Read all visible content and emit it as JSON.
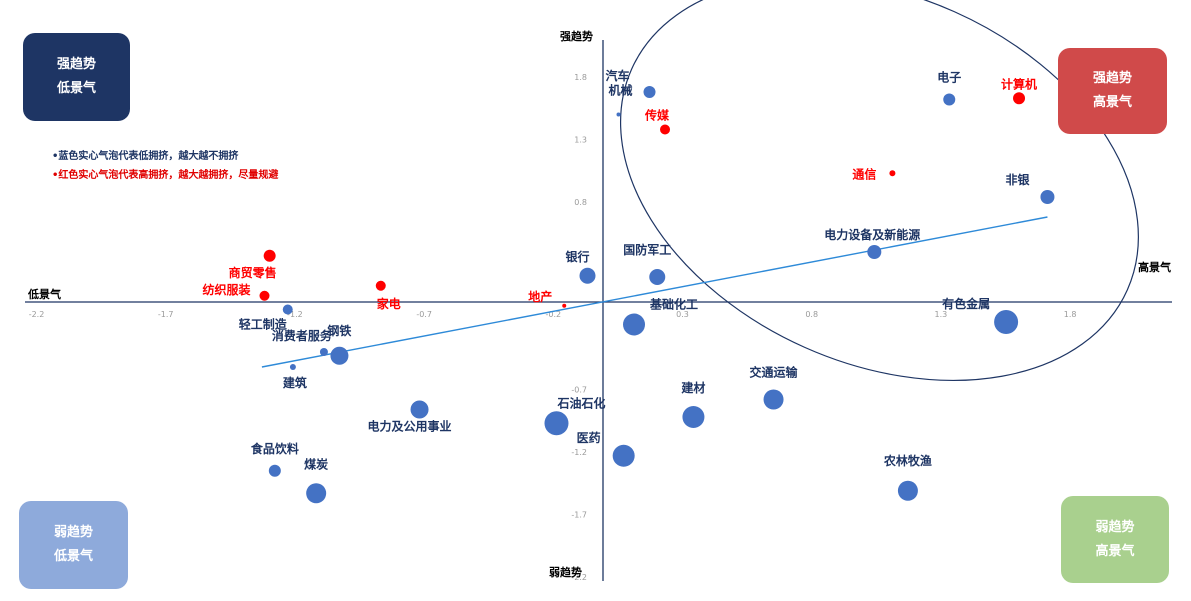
{
  "quadrants": {
    "top_left": {
      "line1": "强趋势",
      "line2": "低景气",
      "color": "#1e3564"
    },
    "top_right": {
      "line1": "强趋势",
      "line2": "高景气",
      "color": "#d04a4a"
    },
    "bottom_left": {
      "line1": "弱趋势",
      "line2": "低景气",
      "color": "#8eaadb"
    },
    "bottom_right": {
      "line1": "弱趋势",
      "line2": "高景气",
      "color": "#a9d08e"
    }
  },
  "notes": {
    "blue": "•蓝色实心气泡代表低拥挤，越大越不拥挤",
    "red": "•红色实心气泡代表高拥挤，越大越拥挤，尽量规避"
  },
  "chart_data": {
    "type": "scatter",
    "xlabel_left": "低景气",
    "xlabel_right": "高景气",
    "ylabel_top": "强趋势",
    "ylabel_bottom": "弱趋势",
    "xlim": [
      -2.2,
      2.2
    ],
    "ylim": [
      -2.2,
      2.2
    ],
    "x_ticks": [
      "-2.2",
      "-1.7",
      "-1.2",
      "-0.7",
      "-0.2",
      "0.3",
      "0.8",
      "1.3",
      "1.8"
    ],
    "x_tick_values": [
      -2.2,
      -1.7,
      -1.2,
      -0.7,
      -0.2,
      0.3,
      0.8,
      1.3,
      1.8
    ],
    "y_ticks": [
      "1.8",
      "1.3",
      "0.8",
      "-0.7",
      "-1.2",
      "-1.7",
      "-2.2"
    ],
    "y_tick_values": [
      1.8,
      1.3,
      0.8,
      -0.7,
      -1.2,
      -1.7,
      -2.2
    ],
    "colors": {
      "low_crowding": "#4472c4",
      "high_crowding": "#ff0000",
      "text_blue": "#1e3564",
      "trend_line": "#2e8ad8",
      "axis": "#1e3564",
      "ellipse": "#1e3564"
    },
    "points": [
      {
        "name": "汽车",
        "x": 0.18,
        "y": 1.68,
        "size": 6,
        "crowd": "low"
      },
      {
        "name": "机械",
        "x": 0.06,
        "y": 1.5,
        "size": 2,
        "crowd": "low"
      },
      {
        "name": "传媒",
        "x": 0.24,
        "y": 1.38,
        "size": 5,
        "crowd": "high"
      },
      {
        "name": "电子",
        "x": 1.34,
        "y": 1.62,
        "size": 6,
        "crowd": "low"
      },
      {
        "name": "计算机",
        "x": 1.61,
        "y": 1.63,
        "size": 6,
        "crowd": "high"
      },
      {
        "name": "通信",
        "x": 1.12,
        "y": 1.03,
        "size": 3,
        "crowd": "high"
      },
      {
        "name": "非银",
        "x": 1.72,
        "y": 0.84,
        "size": 7,
        "crowd": "low"
      },
      {
        "name": "电力设备及新能源",
        "x": 1.05,
        "y": 0.4,
        "size": 7,
        "crowd": "low"
      },
      {
        "name": "国防军工",
        "x": 0.21,
        "y": 0.2,
        "size": 8,
        "crowd": "low"
      },
      {
        "name": "银行",
        "x": -0.06,
        "y": 0.21,
        "size": 8,
        "crowd": "low"
      },
      {
        "name": "商贸零售",
        "x": -1.29,
        "y": 0.37,
        "size": 6,
        "crowd": "high"
      },
      {
        "name": "纺织服装",
        "x": -1.31,
        "y": 0.05,
        "size": 5,
        "crowd": "high"
      },
      {
        "name": "家电",
        "x": -0.86,
        "y": 0.13,
        "size": 5,
        "crowd": "high"
      },
      {
        "name": "地产",
        "x": -0.15,
        "y": -0.03,
        "size": 2,
        "crowd": "high"
      },
      {
        "name": "轻工制造",
        "x": -1.22,
        "y": -0.06,
        "size": 5,
        "crowd": "low"
      },
      {
        "name": "消费者服务",
        "x": -1.08,
        "y": -0.4,
        "size": 4,
        "crowd": "low"
      },
      {
        "name": "钢铁",
        "x": -1.02,
        "y": -0.43,
        "size": 9,
        "crowd": "low"
      },
      {
        "name": "建筑",
        "x": -1.2,
        "y": -0.52,
        "size": 3,
        "crowd": "low"
      },
      {
        "name": "基础化工",
        "x": 0.12,
        "y": -0.18,
        "size": 11,
        "crowd": "low"
      },
      {
        "name": "有色金属",
        "x": 1.56,
        "y": -0.16,
        "size": 12,
        "crowd": "low"
      },
      {
        "name": "交通运输",
        "x": 0.66,
        "y": -0.78,
        "size": 10,
        "crowd": "low"
      },
      {
        "name": "建材",
        "x": 0.35,
        "y": -0.92,
        "size": 11,
        "crowd": "low"
      },
      {
        "name": "电力及公用事业",
        "x": -0.71,
        "y": -0.86,
        "size": 9,
        "crowd": "low"
      },
      {
        "name": "石油石化",
        "x": -0.18,
        "y": -0.97,
        "size": 12,
        "crowd": "low"
      },
      {
        "name": "医药",
        "x": 0.08,
        "y": -1.23,
        "size": 11,
        "crowd": "low"
      },
      {
        "name": "食品饮料",
        "x": -1.27,
        "y": -1.35,
        "size": 6,
        "crowd": "low"
      },
      {
        "name": "煤炭",
        "x": -1.11,
        "y": -1.53,
        "size": 10,
        "crowd": "low"
      },
      {
        "name": "农林牧渔",
        "x": 1.18,
        "y": -1.51,
        "size": 10,
        "crowd": "low"
      }
    ],
    "trend_line": {
      "x": [
        -1.32,
        1.72
      ],
      "y": [
        -0.52,
        0.68
      ]
    },
    "highlight_ellipse": {
      "cx": 1.07,
      "cy": 0.98,
      "rx": 1.05,
      "ry": 1.47
    }
  }
}
